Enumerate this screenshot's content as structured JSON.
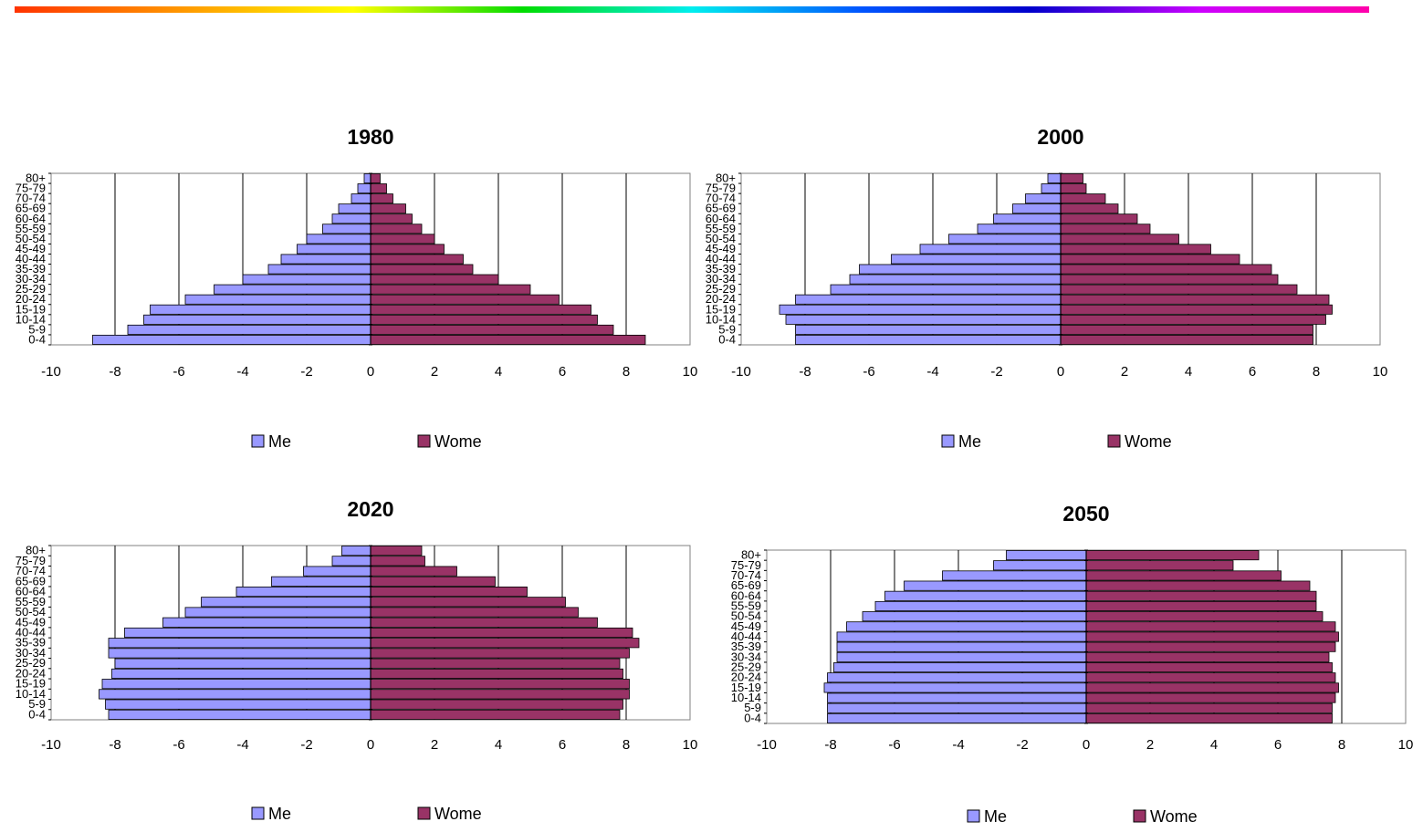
{
  "colors": {
    "men": "#9999ff",
    "women": "#993366",
    "rainbow": [
      "#ff3300",
      "#ff9900",
      "#ffff00",
      "#00dd00",
      "#00eeee",
      "#0055ff",
      "#0000cc",
      "#cc00ff",
      "#ff00aa"
    ]
  },
  "chart_data": [
    {
      "type": "bar",
      "orientation": "horizontal",
      "title": "1980",
      "categories": [
        "0-4",
        "5-9",
        "10-14",
        "15-19",
        "20-24",
        "25-29",
        "30-34",
        "35-39",
        "40-44",
        "45-49",
        "50-54",
        "55-59",
        "60-64",
        "65-69",
        "70-74",
        "75-79",
        "80+"
      ],
      "series": [
        {
          "name": "Me",
          "values": [
            -8.7,
            -7.6,
            -7.1,
            -6.9,
            -5.8,
            -4.9,
            -4.0,
            -3.2,
            -2.8,
            -2.3,
            -2.0,
            -1.5,
            -1.2,
            -1.0,
            -0.6,
            -0.4,
            -0.2
          ]
        },
        {
          "name": "Wome",
          "values": [
            8.6,
            7.6,
            7.1,
            6.9,
            5.9,
            5.0,
            4.0,
            3.2,
            2.9,
            2.3,
            2.0,
            1.6,
            1.3,
            1.1,
            0.7,
            0.5,
            0.3
          ]
        }
      ],
      "xlim": [
        -10,
        10
      ],
      "xticks": [
        "-10",
        "-8",
        "-6",
        "-4",
        "-2",
        "0",
        "2",
        "4",
        "6",
        "8",
        "10"
      ],
      "grid": "vertical",
      "legend": "bottom",
      "legend_labels": [
        "Me",
        "Wome"
      ]
    },
    {
      "type": "bar",
      "orientation": "horizontal",
      "title": "2000",
      "categories": [
        "0-4",
        "5-9",
        "10-14",
        "15-19",
        "20-24",
        "25-29",
        "30-34",
        "35-39",
        "40-44",
        "45-49",
        "50-54",
        "55-59",
        "60-64",
        "65-69",
        "70-74",
        "75-79",
        "80+"
      ],
      "series": [
        {
          "name": "Me",
          "values": [
            -8.3,
            -8.3,
            -8.6,
            -8.8,
            -8.3,
            -7.2,
            -6.6,
            -6.3,
            -5.3,
            -4.4,
            -3.5,
            -2.6,
            -2.1,
            -1.5,
            -1.1,
            -0.6,
            -0.4
          ]
        },
        {
          "name": "Wome",
          "values": [
            7.9,
            7.9,
            8.3,
            8.5,
            8.4,
            7.4,
            6.8,
            6.6,
            5.6,
            4.7,
            3.7,
            2.8,
            2.4,
            1.8,
            1.4,
            0.8,
            0.7
          ]
        }
      ],
      "xlim": [
        -10,
        10
      ],
      "xticks": [
        "-10",
        "-8",
        "-6",
        "-4",
        "-2",
        "0",
        "2",
        "4",
        "6",
        "8",
        "10"
      ],
      "grid": "vertical",
      "legend": "bottom",
      "legend_labels": [
        "Me",
        "Wome"
      ]
    },
    {
      "type": "bar",
      "orientation": "horizontal",
      "title": "2020",
      "categories": [
        "0-4",
        "5-9",
        "10-14",
        "15-19",
        "20-24",
        "25-29",
        "30-34",
        "35-39",
        "40-44",
        "45-49",
        "50-54",
        "55-59",
        "60-64",
        "65-69",
        "70-74",
        "75-79",
        "80+"
      ],
      "series": [
        {
          "name": "Me",
          "values": [
            -8.2,
            -8.3,
            -8.5,
            -8.4,
            -8.1,
            -8.0,
            -8.2,
            -8.2,
            -7.7,
            -6.5,
            -5.8,
            -5.3,
            -4.2,
            -3.1,
            -2.1,
            -1.2,
            -0.9
          ]
        },
        {
          "name": "Wome",
          "values": [
            7.8,
            7.9,
            8.1,
            8.1,
            7.9,
            7.8,
            8.1,
            8.4,
            8.2,
            7.1,
            6.5,
            6.1,
            4.9,
            3.9,
            2.7,
            1.7,
            1.6
          ]
        }
      ],
      "xlim": [
        -10,
        10
      ],
      "xticks": [
        "-10",
        "-8",
        "-6",
        "-4",
        "-2",
        "0",
        "2",
        "4",
        "6",
        "8",
        "10"
      ],
      "grid": "vertical",
      "legend": "bottom",
      "legend_labels": [
        "Me",
        "Wome"
      ]
    },
    {
      "type": "bar",
      "orientation": "horizontal",
      "title": "2050",
      "categories": [
        "0-4",
        "5-9",
        "10-14",
        "15-19",
        "20-24",
        "25-29",
        "30-34",
        "35-39",
        "40-44",
        "45-49",
        "50-54",
        "55-59",
        "60-64",
        "65-69",
        "70-74",
        "75-79",
        "80+"
      ],
      "series": [
        {
          "name": "Me",
          "values": [
            -8.1,
            -8.1,
            -8.1,
            -8.2,
            -8.1,
            -7.9,
            -7.8,
            -7.8,
            -7.8,
            -7.5,
            -7.0,
            -6.6,
            -6.3,
            -5.7,
            -4.5,
            -2.9,
            -2.5
          ]
        },
        {
          "name": "Wome",
          "values": [
            7.7,
            7.7,
            7.8,
            7.9,
            7.8,
            7.7,
            7.6,
            7.8,
            7.9,
            7.8,
            7.4,
            7.2,
            7.2,
            7.0,
            6.1,
            4.6,
            5.4
          ]
        }
      ],
      "xlim": [
        -10,
        10
      ],
      "xticks": [
        "-10",
        "-8",
        "-6",
        "-4",
        "-2",
        "0",
        "2",
        "4",
        "6",
        "8",
        "10"
      ],
      "grid": "vertical",
      "legend": "bottom",
      "legend_labels": [
        "Me",
        "Wome"
      ]
    }
  ]
}
